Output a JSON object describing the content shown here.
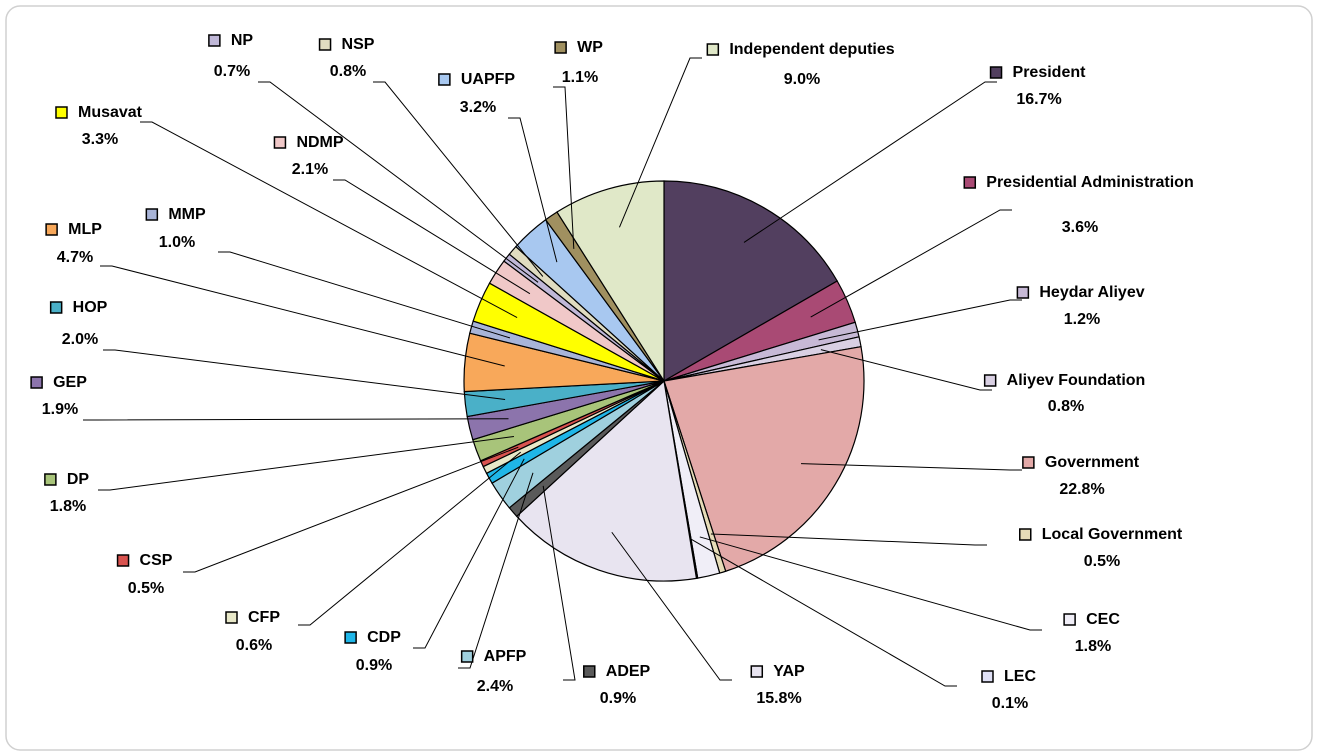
{
  "chart_data": {
    "type": "pie",
    "categories": [
      "President",
      "Presidential Administration",
      "Heydar Aliyev",
      "Aliyev Foundation",
      "Government",
      "Local Government",
      "CEC",
      "LEC",
      "YAP",
      "ADEP",
      "APFP",
      "CDP",
      "CFP",
      "CSP",
      "DP",
      "GEP",
      "HOP",
      "MLP",
      "MMP",
      "Musavat",
      "NDMP",
      "NP",
      "NSP",
      "UAPFP",
      "WP",
      "Independent deputies"
    ],
    "values": [
      16.7,
      3.6,
      1.2,
      0.8,
      22.8,
      0.5,
      1.8,
      0.1,
      15.8,
      0.9,
      2.4,
      0.9,
      0.6,
      0.5,
      1.8,
      1.9,
      2.0,
      4.7,
      1.0,
      3.3,
      2.1,
      0.7,
      0.8,
      3.2,
      1.1,
      9.0
    ],
    "value_labels": [
      "16.7%",
      "3.6%",
      "1.2%",
      "0.8%",
      "22.8%",
      "0.5%",
      "1.8%",
      "0.1%",
      "15.8%",
      "0.9%",
      "2.4%",
      "0.9%",
      "0.6%",
      "0.5%",
      "1.8%",
      "1.9%",
      "2.0%",
      "4.7%",
      "1.0%",
      "3.3%",
      "2.1%",
      "0.7%",
      "0.8%",
      "3.2%",
      "1.1%",
      "9.0%"
    ],
    "colors": [
      "#523f5f",
      "#a94a74",
      "#c7b9d6",
      "#d9d0e3",
      "#e3a9a8",
      "#e6dcb8",
      "#f0eef7",
      "#dfe0f5",
      "#e8e4f0",
      "#5a5a5a",
      "#9fd0de",
      "#1fb6e8",
      "#e8e8c8",
      "#d9534f",
      "#a8c47a",
      "#8c74ac",
      "#4ab0c8",
      "#f8a85a",
      "#a8b4d8",
      "#ffff00",
      "#f0c8c8",
      "#c0b8d8",
      "#e0dcc0",
      "#a8c8f0",
      "#a09060",
      "#e0e8c8"
    ]
  }
}
